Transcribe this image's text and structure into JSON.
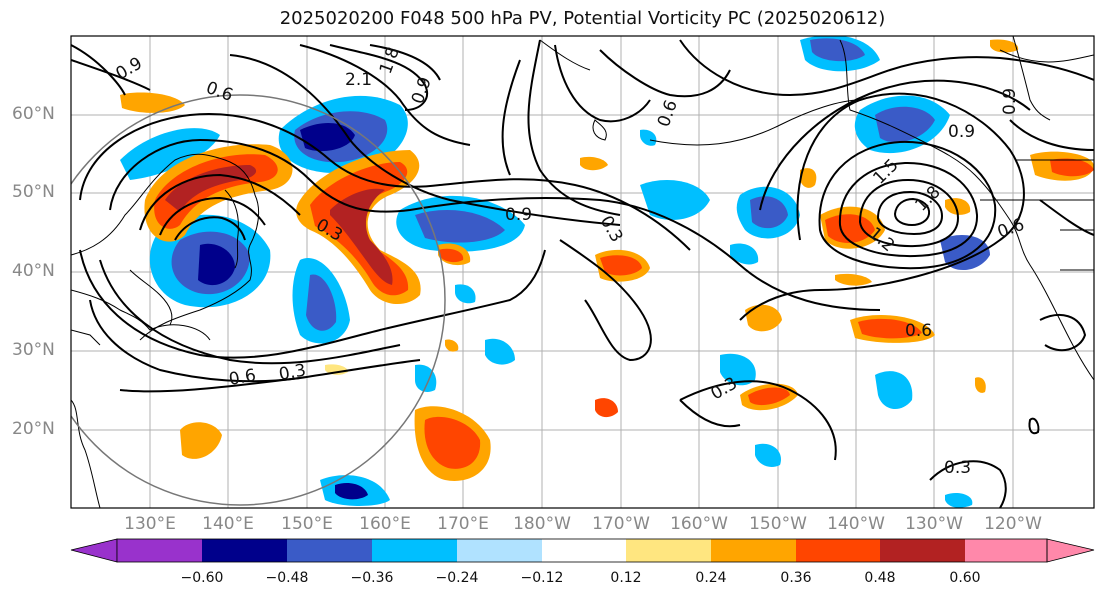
{
  "title": "2025020200 F048 500 hPa PV, Potential Vorticity PC (2025020612)",
  "map": {
    "lat_labels": [
      "60°N",
      "50°N",
      "40°N",
      "30°N",
      "20°N"
    ],
    "lon_labels": [
      "130°E",
      "140°E",
      "150°E",
      "160°E",
      "170°E",
      "180°W",
      "170°W",
      "160°W",
      "150°W",
      "140°W",
      "130°W",
      "120°W"
    ],
    "contour_labels": [
      "2.1",
      "1.8",
      "0.9",
      "0.6",
      "0.9",
      "0.3",
      "0.9",
      "0.3",
      "0.6",
      "0.3",
      "1.5",
      "1.8",
      "1.2",
      "0.9",
      "0.6",
      "0.6",
      "0.3",
      "0.3",
      "0.9",
      "0.6"
    ]
  },
  "colorbar": {
    "ticks": [
      "−0.60",
      "−0.48",
      "−0.36",
      "−0.24",
      "−0.12",
      "0.12",
      "0.24",
      "0.36",
      "0.48",
      "0.60"
    ],
    "colors": [
      "#9932cc",
      "#00008b",
      "#3a5bc7",
      "#00bfff",
      "#b0e2ff",
      "#ffffff",
      "#ffe680",
      "#ffa500",
      "#ff4500",
      "#b22222",
      "#ff88aa"
    ]
  }
}
